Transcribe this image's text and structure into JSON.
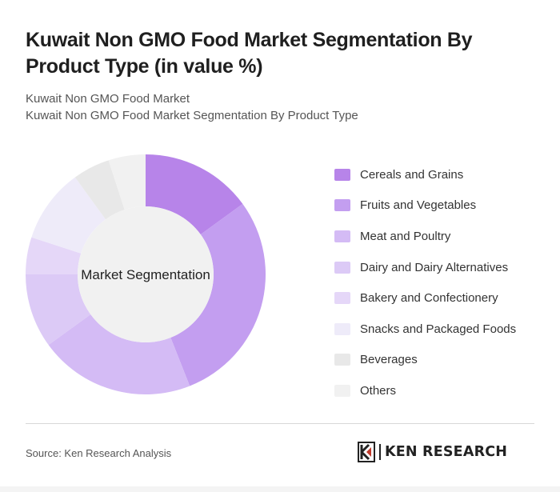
{
  "header": {
    "title": "Kuwait Non GMO Food Market Segmentation By Product Type (in value %)",
    "subtitle_line1": "Kuwait Non GMO Food Market",
    "subtitle_line2": "Kuwait Non GMO Food Market Segmentation By Product Type"
  },
  "chart_data": {
    "type": "pie",
    "center_label": "Market Segmentation",
    "categories": [
      "Cereals and Grains",
      "Fruits and Vegetables",
      "Meat and Poultry",
      "Dairy and Dairy Alternatives",
      "Bakery and Confectionery",
      "Snacks and Packaged Foods",
      "Beverages",
      "Others"
    ],
    "values": [
      15,
      29,
      21,
      10,
      5,
      10,
      5,
      5
    ],
    "colors": [
      "#b784e9",
      "#c39ef0",
      "#d4bbf5",
      "#dccaf6",
      "#e5d7f8",
      "#eeebf9",
      "#e8e8e8",
      "#f1f1f1"
    ],
    "legend_position": "right"
  },
  "footer": {
    "source": "Source: Ken Research Analysis",
    "brand": "KEN RESEARCH"
  }
}
